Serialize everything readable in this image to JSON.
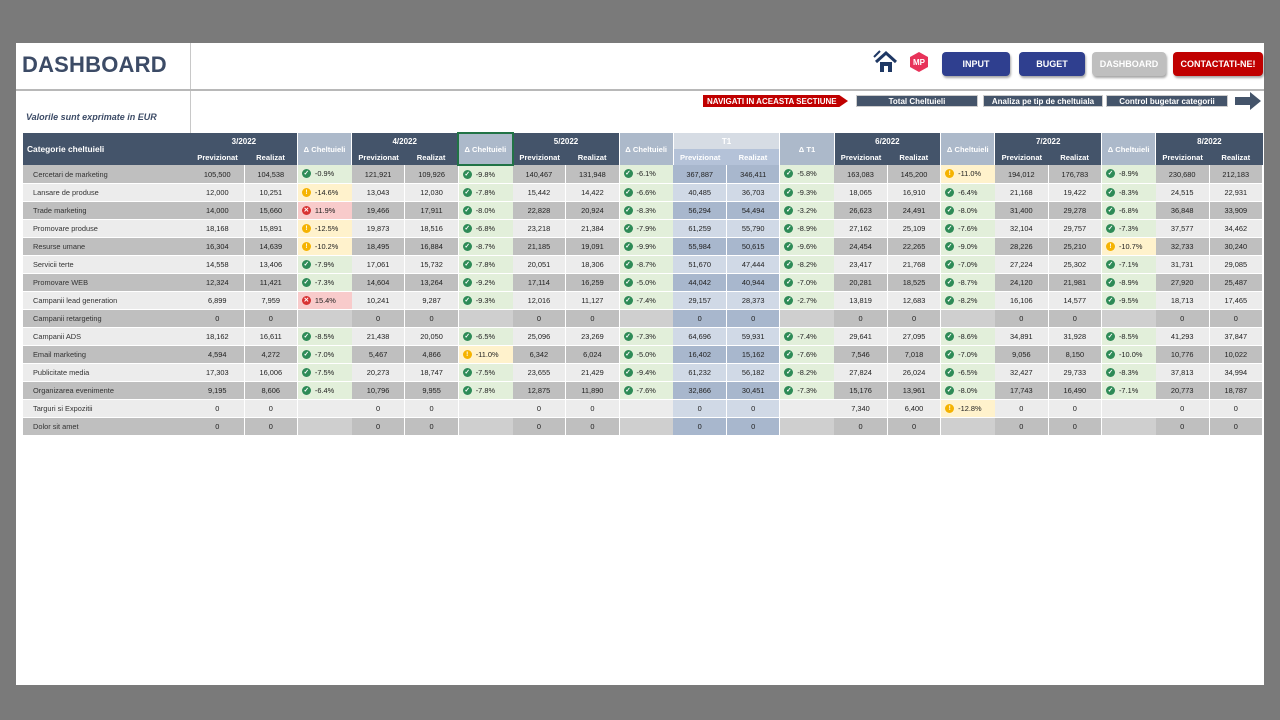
{
  "title": "DASHBOARD",
  "subtitle": "Valorile sunt exprimate in EUR",
  "toolbar": {
    "input": "INPUT",
    "buget": "BUGET",
    "dashboard": "DASHBOARD",
    "contact": "CONTACTATI-NE!",
    "logo": "MP"
  },
  "nav": {
    "label": "NAVIGATI IN ACEASTA SECTIUNE",
    "items": [
      "Total Cheltuieli",
      "Analiza pe tip de cheltuiala",
      "Control bugetar categorii"
    ]
  },
  "colors": {
    "header": "#44546a",
    "delta_header": "#acb9ca",
    "input_btn": "#2f3f8f",
    "dashboard_btn": "#bfbfbf",
    "contact_btn": "#c00000",
    "good": "#e2efda",
    "warn": "#fff2cc",
    "bad": "#f8cbcb"
  },
  "table": {
    "category_header": "Categorie cheltuieli",
    "sub_planned": "Previzionat",
    "sub_actual": "Realizat",
    "delta_label": "Δ Cheltuieli",
    "quarter_delta_label": "Δ  T1",
    "periods": [
      "3/2022",
      "4/2022",
      "5/2022",
      "T1",
      "6/2022",
      "7/2022",
      "8/2022"
    ],
    "rows": [
      {
        "cat": "Cercetari de marketing",
        "vals": [
          [
            "105,500",
            "104,538"
          ],
          [
            "121,921",
            "109,926"
          ],
          [
            "140,467",
            "131,948"
          ],
          [
            "367,887",
            "346,411"
          ],
          [
            "163,083",
            "145,200"
          ],
          [
            "194,012",
            "176,783"
          ],
          [
            "230,680",
            "212,183"
          ]
        ],
        "deltas": [
          [
            "-0.9%",
            "g"
          ],
          [
            "-9.8%",
            "g"
          ],
          [
            "-6.1%",
            "g"
          ],
          [
            "-5.8%",
            "g"
          ],
          [
            "-11.0%",
            "y"
          ],
          [
            "-8.9%",
            "g"
          ]
        ]
      },
      {
        "cat": "Lansare de produse",
        "vals": [
          [
            "12,000",
            "10,251"
          ],
          [
            "13,043",
            "12,030"
          ],
          [
            "15,442",
            "14,422"
          ],
          [
            "40,485",
            "36,703"
          ],
          [
            "18,065",
            "16,910"
          ],
          [
            "21,168",
            "19,422"
          ],
          [
            "24,515",
            "22,931"
          ]
        ],
        "deltas": [
          [
            "-14.6%",
            "y"
          ],
          [
            "-7.8%",
            "g"
          ],
          [
            "-6.6%",
            "g"
          ],
          [
            "-9.3%",
            "g"
          ],
          [
            "-6.4%",
            "g"
          ],
          [
            "-8.3%",
            "g"
          ]
        ]
      },
      {
        "cat": "Trade marketing",
        "vals": [
          [
            "14,000",
            "15,660"
          ],
          [
            "19,466",
            "17,911"
          ],
          [
            "22,828",
            "20,924"
          ],
          [
            "56,294",
            "54,494"
          ],
          [
            "26,623",
            "24,491"
          ],
          [
            "31,400",
            "29,278"
          ],
          [
            "36,848",
            "33,909"
          ]
        ],
        "deltas": [
          [
            "11.9%",
            "rd"
          ],
          [
            "-8.0%",
            "g"
          ],
          [
            "-8.3%",
            "g"
          ],
          [
            "-3.2%",
            "g"
          ],
          [
            "-8.0%",
            "g"
          ],
          [
            "-6.8%",
            "g"
          ]
        ]
      },
      {
        "cat": "Promovare produse",
        "vals": [
          [
            "18,168",
            "15,891"
          ],
          [
            "19,873",
            "18,516"
          ],
          [
            "23,218",
            "21,384"
          ],
          [
            "61,259",
            "55,790"
          ],
          [
            "27,162",
            "25,109"
          ],
          [
            "32,104",
            "29,757"
          ],
          [
            "37,577",
            "34,462"
          ]
        ],
        "deltas": [
          [
            "-12.5%",
            "y"
          ],
          [
            "-6.8%",
            "g"
          ],
          [
            "-7.9%",
            "g"
          ],
          [
            "-8.9%",
            "g"
          ],
          [
            "-7.6%",
            "g"
          ],
          [
            "-7.3%",
            "g"
          ]
        ]
      },
      {
        "cat": "Resurse umane",
        "vals": [
          [
            "16,304",
            "14,639"
          ],
          [
            "18,495",
            "16,884"
          ],
          [
            "21,185",
            "19,091"
          ],
          [
            "55,984",
            "50,615"
          ],
          [
            "24,454",
            "22,265"
          ],
          [
            "28,226",
            "25,210"
          ],
          [
            "32,733",
            "30,240"
          ]
        ],
        "deltas": [
          [
            "-10.2%",
            "y"
          ],
          [
            "-8.7%",
            "g"
          ],
          [
            "-9.9%",
            "g"
          ],
          [
            "-9.6%",
            "g"
          ],
          [
            "-9.0%",
            "g"
          ],
          [
            "-10.7%",
            "y"
          ]
        ]
      },
      {
        "cat": "Servicii terte",
        "vals": [
          [
            "14,558",
            "13,406"
          ],
          [
            "17,061",
            "15,732"
          ],
          [
            "20,051",
            "18,306"
          ],
          [
            "51,670",
            "47,444"
          ],
          [
            "23,417",
            "21,768"
          ],
          [
            "27,224",
            "25,302"
          ],
          [
            "31,731",
            "29,085"
          ]
        ],
        "deltas": [
          [
            "-7.9%",
            "g"
          ],
          [
            "-7.8%",
            "g"
          ],
          [
            "-8.7%",
            "g"
          ],
          [
            "-8.2%",
            "g"
          ],
          [
            "-7.0%",
            "g"
          ],
          [
            "-7.1%",
            "g"
          ]
        ]
      },
      {
        "cat": "Promovare WEB",
        "vals": [
          [
            "12,324",
            "11,421"
          ],
          [
            "14,604",
            "13,264"
          ],
          [
            "17,114",
            "16,259"
          ],
          [
            "44,042",
            "40,944"
          ],
          [
            "20,281",
            "18,525"
          ],
          [
            "24,120",
            "21,981"
          ],
          [
            "27,920",
            "25,487"
          ]
        ],
        "deltas": [
          [
            "-7.3%",
            "g"
          ],
          [
            "-9.2%",
            "g"
          ],
          [
            "-5.0%",
            "g"
          ],
          [
            "-7.0%",
            "g"
          ],
          [
            "-8.7%",
            "g"
          ],
          [
            "-8.9%",
            "g"
          ]
        ]
      },
      {
        "cat": "Campanii lead generation",
        "vals": [
          [
            "6,899",
            "7,959"
          ],
          [
            "10,241",
            "9,287"
          ],
          [
            "12,016",
            "11,127"
          ],
          [
            "29,157",
            "28,373"
          ],
          [
            "13,819",
            "12,683"
          ],
          [
            "16,106",
            "14,577"
          ],
          [
            "18,713",
            "17,465"
          ]
        ],
        "deltas": [
          [
            "15.4%",
            "rd"
          ],
          [
            "-9.3%",
            "g"
          ],
          [
            "-7.4%",
            "g"
          ],
          [
            "-2.7%",
            "g"
          ],
          [
            "-8.2%",
            "g"
          ],
          [
            "-9.5%",
            "g"
          ]
        ]
      },
      {
        "cat": "Campanii retargeting",
        "vals": [
          [
            "0",
            "0"
          ],
          [
            "0",
            "0"
          ],
          [
            "0",
            "0"
          ],
          [
            "0",
            "0"
          ],
          [
            "0",
            "0"
          ],
          [
            "0",
            "0"
          ],
          [
            "0",
            "0"
          ]
        ],
        "deltas": [
          [
            "",
            ""
          ],
          [
            "",
            ""
          ],
          [
            "",
            ""
          ],
          [
            "",
            ""
          ],
          [
            "",
            ""
          ],
          [
            "",
            ""
          ]
        ]
      },
      {
        "cat": "Campanii ADS",
        "vals": [
          [
            "18,162",
            "16,611"
          ],
          [
            "21,438",
            "20,050"
          ],
          [
            "25,096",
            "23,269"
          ],
          [
            "64,696",
            "59,931"
          ],
          [
            "29,641",
            "27,095"
          ],
          [
            "34,891",
            "31,928"
          ],
          [
            "41,293",
            "37,847"
          ]
        ],
        "deltas": [
          [
            "-8.5%",
            "g"
          ],
          [
            "-6.5%",
            "g"
          ],
          [
            "-7.3%",
            "g"
          ],
          [
            "-7.4%",
            "g"
          ],
          [
            "-8.6%",
            "g"
          ],
          [
            "-8.5%",
            "g"
          ]
        ]
      },
      {
        "cat": "Email marketing",
        "vals": [
          [
            "4,594",
            "4,272"
          ],
          [
            "5,467",
            "4,866"
          ],
          [
            "6,342",
            "6,024"
          ],
          [
            "16,402",
            "15,162"
          ],
          [
            "7,546",
            "7,018"
          ],
          [
            "9,056",
            "8,150"
          ],
          [
            "10,776",
            "10,022"
          ]
        ],
        "deltas": [
          [
            "-7.0%",
            "g"
          ],
          [
            "-11.0%",
            "y"
          ],
          [
            "-5.0%",
            "g"
          ],
          [
            "-7.6%",
            "g"
          ],
          [
            "-7.0%",
            "g"
          ],
          [
            "-10.0%",
            "g"
          ]
        ]
      },
      {
        "cat": "Publicitate media",
        "vals": [
          [
            "17,303",
            "16,006"
          ],
          [
            "20,273",
            "18,747"
          ],
          [
            "23,655",
            "21,429"
          ],
          [
            "61,232",
            "56,182"
          ],
          [
            "27,824",
            "26,024"
          ],
          [
            "32,427",
            "29,733"
          ],
          [
            "37,813",
            "34,994"
          ]
        ],
        "deltas": [
          [
            "-7.5%",
            "g"
          ],
          [
            "-7.5%",
            "g"
          ],
          [
            "-9.4%",
            "g"
          ],
          [
            "-8.2%",
            "g"
          ],
          [
            "-6.5%",
            "g"
          ],
          [
            "-8.3%",
            "g"
          ]
        ]
      },
      {
        "cat": "Organizarea evenimente",
        "vals": [
          [
            "9,195",
            "8,606"
          ],
          [
            "10,796",
            "9,955"
          ],
          [
            "12,875",
            "11,890"
          ],
          [
            "32,866",
            "30,451"
          ],
          [
            "15,176",
            "13,961"
          ],
          [
            "17,743",
            "16,490"
          ],
          [
            "20,773",
            "18,787"
          ]
        ],
        "deltas": [
          [
            "-6.4%",
            "g"
          ],
          [
            "-7.8%",
            "g"
          ],
          [
            "-7.6%",
            "g"
          ],
          [
            "-7.3%",
            "g"
          ],
          [
            "-8.0%",
            "g"
          ],
          [
            "-7.1%",
            "g"
          ]
        ]
      },
      {
        "cat": "Targuri si Expozitii",
        "vals": [
          [
            "0",
            "0"
          ],
          [
            "0",
            "0"
          ],
          [
            "0",
            "0"
          ],
          [
            "0",
            "0"
          ],
          [
            "7,340",
            "6,400"
          ],
          [
            "0",
            "0"
          ],
          [
            "0",
            "0"
          ]
        ],
        "deltas": [
          [
            "",
            ""
          ],
          [
            "",
            ""
          ],
          [
            "",
            ""
          ],
          [
            "",
            ""
          ],
          [
            "-12.8%",
            "y"
          ],
          [
            "",
            ""
          ]
        ]
      },
      {
        "cat": "Dolor sit amet",
        "vals": [
          [
            "0",
            "0"
          ],
          [
            "0",
            "0"
          ],
          [
            "0",
            "0"
          ],
          [
            "0",
            "0"
          ],
          [
            "0",
            "0"
          ],
          [
            "0",
            "0"
          ],
          [
            "0",
            "0"
          ]
        ],
        "deltas": [
          [
            "",
            ""
          ],
          [
            "",
            ""
          ],
          [
            "",
            ""
          ],
          [
            "",
            ""
          ],
          [
            "",
            ""
          ],
          [
            "",
            ""
          ]
        ]
      }
    ]
  }
}
